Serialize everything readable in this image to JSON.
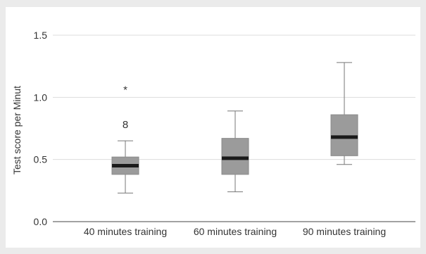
{
  "chart_data": {
    "type": "box",
    "title": "",
    "xlabel": "",
    "ylabel": "Test score per Minut",
    "ylim": [
      0.0,
      1.5
    ],
    "yticks": [
      "0.0",
      "0.5",
      "1.0",
      "1.5"
    ],
    "yticks_values": [
      0.0,
      0.5,
      1.0,
      1.5
    ],
    "grid": true,
    "categories": [
      "40 minutes training",
      "60 minutes training",
      "90 minutes training"
    ],
    "boxes": [
      {
        "category": "40 minutes training",
        "whisker_low": 0.23,
        "q1": 0.38,
        "median": 0.45,
        "q3": 0.52,
        "whisker_high": 0.65,
        "outliers": [
          {
            "value": 0.78,
            "marker": "8"
          },
          {
            "value": 1.09,
            "marker": "*"
          }
        ]
      },
      {
        "category": "60 minutes training",
        "whisker_low": 0.24,
        "q1": 0.38,
        "median": 0.51,
        "q3": 0.67,
        "whisker_high": 0.89,
        "outliers": []
      },
      {
        "category": "90 minutes training",
        "whisker_low": 0.46,
        "q1": 0.53,
        "median": 0.68,
        "q3": 0.86,
        "whisker_high": 1.28,
        "outliers": []
      }
    ],
    "colors": {
      "background": "#ebebeb",
      "plot_background": "#ffffff",
      "box_fill": "#9b9b9b",
      "median": "#1a1a1a",
      "whisker": "#777777",
      "grid": "#dddddd",
      "axis": "#444444"
    }
  }
}
